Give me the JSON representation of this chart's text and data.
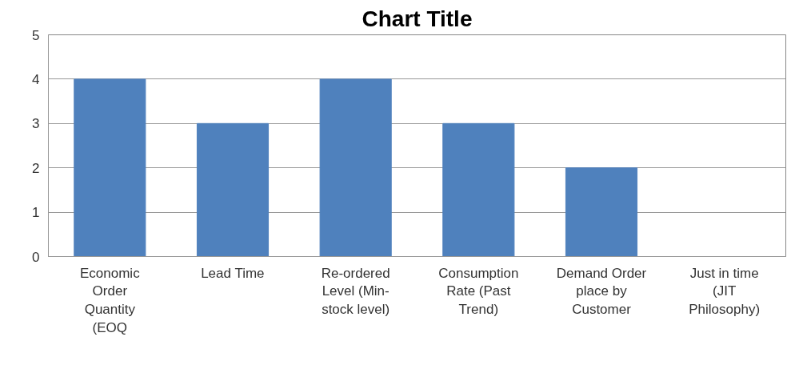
{
  "chart_data": {
    "type": "bar",
    "title": "Chart Title",
    "categories": [
      "Economic Order Quantity (EOQ",
      "Lead Time",
      "Re-ordered Level (Min-stock level)",
      "Consumption Rate (Past Trend)",
      "Demand Order place by Customer",
      "Just in time (JIT Philosophy)"
    ],
    "values": [
      4,
      3,
      4,
      3,
      2,
      0
    ],
    "color": "#4f81bd",
    "ylim": [
      0,
      5
    ],
    "yticks": [
      0,
      1,
      2,
      3,
      4,
      5
    ],
    "grid": "y"
  }
}
